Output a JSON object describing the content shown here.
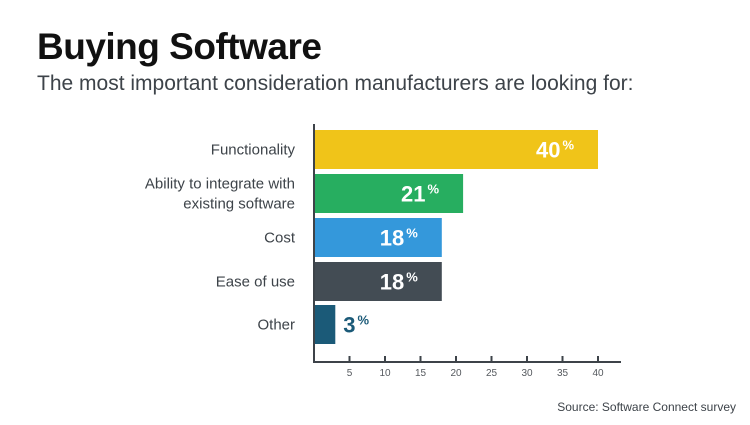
{
  "chart_data": {
    "type": "bar",
    "orientation": "horizontal",
    "title": "Buying Software",
    "subtitle": "The most important consideration manufacturers are looking for:",
    "categories": [
      [
        "Functionality"
      ],
      [
        "Ability to integrate with",
        "existing software"
      ],
      [
        "Cost"
      ],
      [
        "Ease of use"
      ],
      [
        "Other"
      ]
    ],
    "values": [
      40,
      21,
      18,
      18,
      3
    ],
    "value_suffix": "%",
    "colors": [
      "#f0c419",
      "#27ae60",
      "#3498db",
      "#434c54",
      "#1b5a78"
    ],
    "xlim": [
      0,
      40
    ],
    "xticks": [
      5,
      10,
      15,
      20,
      25,
      30,
      35,
      40
    ],
    "grid": false,
    "source": "Source: Software Connect survey"
  }
}
